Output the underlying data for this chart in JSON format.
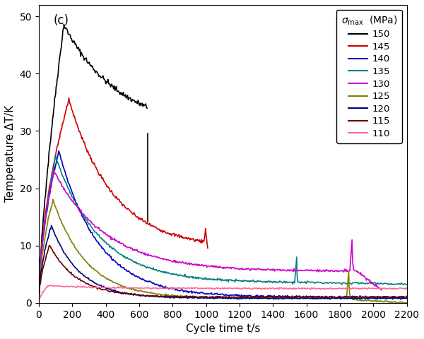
{
  "title": "(c)",
  "xlabel": "Cycle time t/s",
  "ylabel": "Temperature ΔT/K",
  "xlim": [
    0,
    2200
  ],
  "ylim": [
    0,
    52
  ],
  "xticks": [
    0,
    200,
    400,
    600,
    800,
    1000,
    1200,
    1400,
    1600,
    1800,
    2000,
    2200
  ],
  "yticks": [
    0,
    10,
    20,
    30,
    40,
    50
  ],
  "series": [
    {
      "label": "150",
      "color": "#000000"
    },
    {
      "label": "145",
      "color": "#cc0000"
    },
    {
      "label": "140",
      "color": "#0000bb"
    },
    {
      "label": "135",
      "color": "#008080"
    },
    {
      "label": "130",
      "color": "#cc00cc"
    },
    {
      "label": "125",
      "color": "#808000"
    },
    {
      "label": "120",
      "color": "#000080"
    },
    {
      "label": "115",
      "color": "#660000"
    },
    {
      "label": "110",
      "color": "#ff6699"
    }
  ],
  "figsize": [
    6.0,
    4.8
  ],
  "dpi": 100
}
